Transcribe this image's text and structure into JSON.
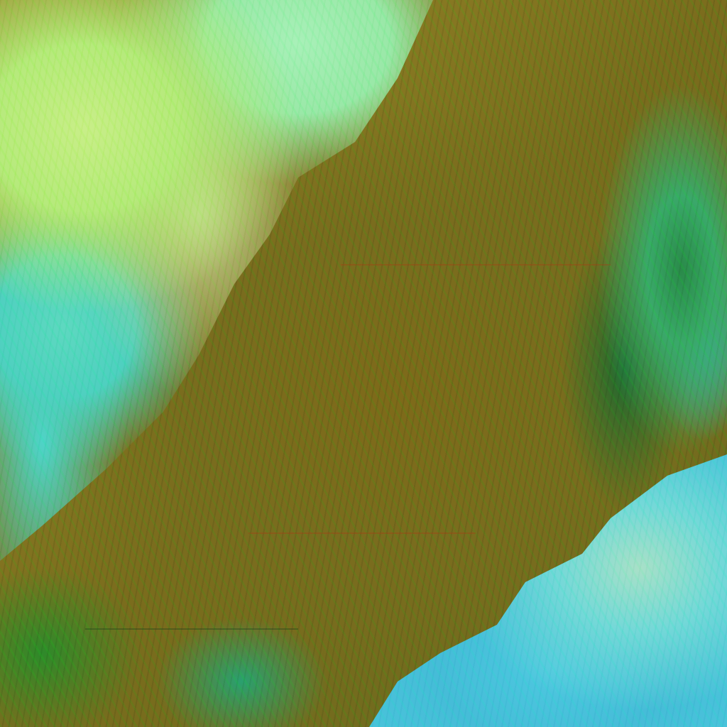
{
  "image": {
    "kind": "false-color satellite imagery",
    "colors": {
      "land_brown": "#7a6c1e",
      "cloud_green": "#b6ea7c",
      "cloud_cyan": "#4ec8e0",
      "vegetation_green": "#2e8a2a"
    }
  }
}
